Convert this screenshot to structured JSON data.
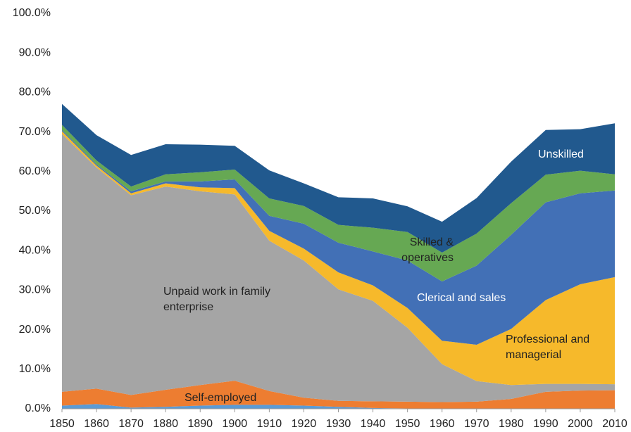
{
  "chart_data": {
    "type": "stacked_area",
    "x": [
      1850,
      1860,
      1870,
      1880,
      1890,
      1900,
      1910,
      1920,
      1930,
      1940,
      1950,
      1960,
      1970,
      1980,
      1990,
      2000,
      2010
    ],
    "xlim": [
      1850,
      2010
    ],
    "xticks": [
      1850,
      1860,
      1870,
      1880,
      1890,
      1900,
      1910,
      1920,
      1930,
      1940,
      1950,
      1960,
      1970,
      1980,
      1990,
      2000,
      2010
    ],
    "ylim": [
      0,
      100
    ],
    "yticks": [
      {
        "value": 0,
        "label": "0.0%"
      },
      {
        "value": 10,
        "label": "10.0%"
      },
      {
        "value": 20,
        "label": "20.0%"
      },
      {
        "value": 30,
        "label": "30.0%"
      },
      {
        "value": 40,
        "label": "40.0%"
      },
      {
        "value": 50,
        "label": "50.0%"
      },
      {
        "value": 60,
        "label": "60.0%"
      },
      {
        "value": 70,
        "label": "70.0%"
      },
      {
        "value": 80,
        "label": "80.0%"
      },
      {
        "value": 90,
        "label": "90.0%"
      },
      {
        "value": 100,
        "label": "100.0%"
      }
    ],
    "grid": false,
    "series": [
      {
        "color": "#5b9bd5",
        "values": [
          0.8,
          1.2,
          0.3,
          0.5,
          0.8,
          1.0,
          1.0,
          0.8,
          0.5,
          0.2,
          0.1,
          0,
          0,
          0,
          0,
          0,
          0
        ]
      },
      {
        "name": "Self-employed",
        "color": "#ed7d31",
        "values": [
          3.5,
          3.9,
          3.2,
          4.3,
          5.2,
          6.1,
          3.5,
          2.0,
          1.5,
          1.7,
          1.7,
          1.7,
          1.8,
          2.5,
          4.3,
          4.6,
          4.7
        ]
      },
      {
        "name": "Unpaid work in family enterprise",
        "color": "#a5a5a5",
        "values": [
          65.2,
          55.9,
          50.5,
          51.4,
          49.0,
          47.1,
          38.0,
          34.7,
          28.2,
          25.4,
          18.7,
          9.6,
          5.2,
          3.5,
          2.0,
          1.7,
          1.5
        ]
      },
      {
        "name": "Professional and managerial",
        "color": "#f6b92b",
        "values": [
          0.7,
          0.5,
          0.5,
          0.8,
          1.0,
          1.6,
          2.5,
          3.0,
          4.3,
          3.9,
          5.0,
          5.9,
          9.2,
          14.2,
          21.2,
          25.2,
          27.1
        ]
      },
      {
        "name": "Clerical and sales",
        "color": "#4270b6",
        "values": [
          0.3,
          0.3,
          0.5,
          0.5,
          1.5,
          2.2,
          3.8,
          6.3,
          7.5,
          8.6,
          12.0,
          15.0,
          20.0,
          23.8,
          24.7,
          23.0,
          21.9
        ]
      },
      {
        "name": "Skilled & operatives",
        "color": "#66a853",
        "values": [
          1.3,
          1.0,
          1.2,
          1.8,
          2.3,
          2.5,
          4.4,
          4.5,
          4.5,
          6.0,
          7.2,
          7.3,
          8.1,
          8.0,
          7.0,
          5.7,
          4.1
        ]
      },
      {
        "name": "Unskilled",
        "color": "#21598e",
        "values": [
          5.3,
          6.4,
          8.0,
          7.6,
          7.0,
          6.0,
          7.1,
          5.7,
          7.0,
          7.4,
          6.5,
          7.8,
          9.0,
          10.5,
          11.3,
          10.5,
          12.9
        ]
      }
    ]
  }
}
